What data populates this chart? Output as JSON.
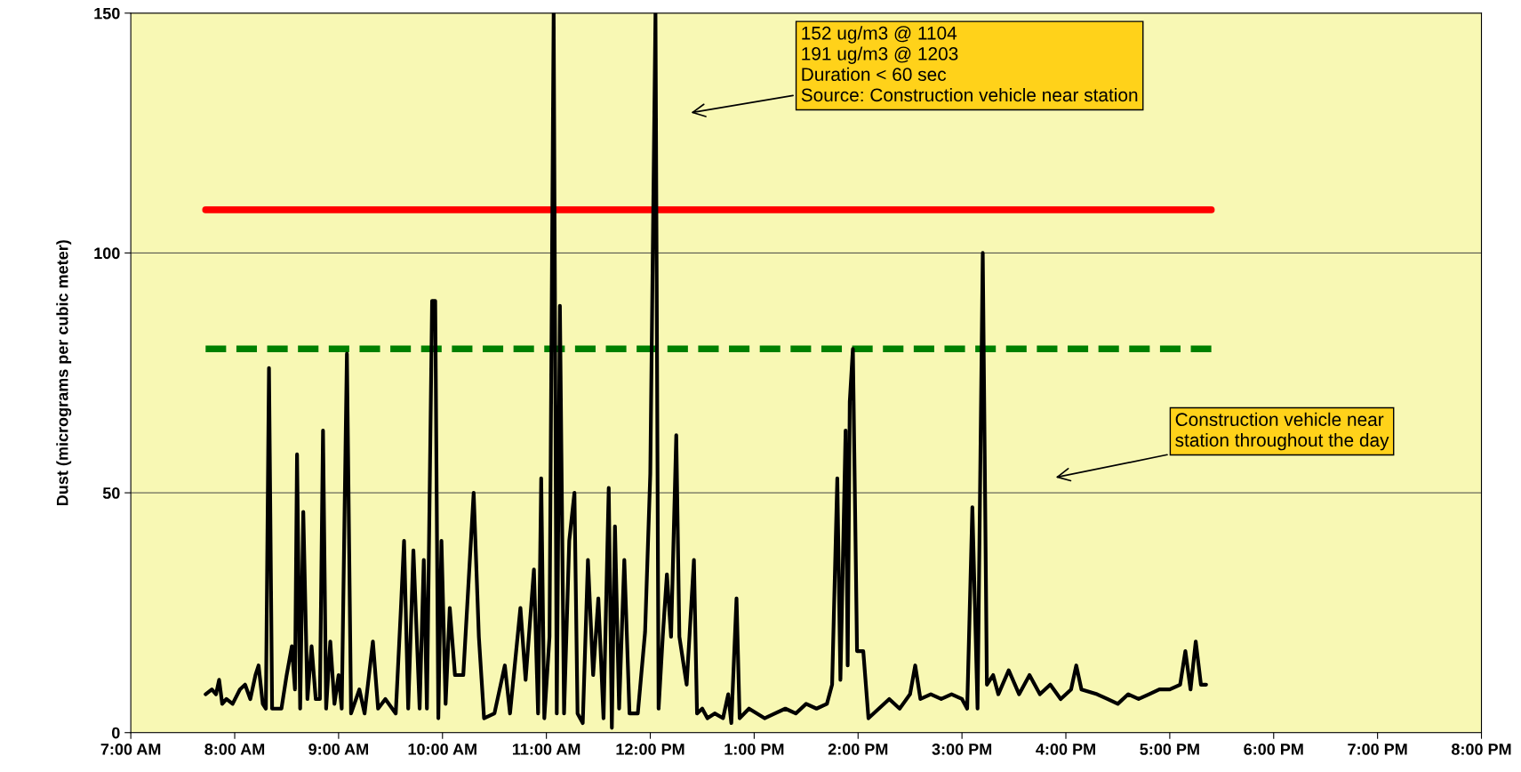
{
  "chart_data": {
    "type": "line",
    "ylabel": "Dust (micrograms per cubic meter)",
    "xlim": [
      7,
      20
    ],
    "ylim": [
      0,
      150
    ],
    "xticks": [
      {
        "value": 7,
        "label": "7:00 AM"
      },
      {
        "value": 8,
        "label": "8:00 AM"
      },
      {
        "value": 9,
        "label": "9:00 AM"
      },
      {
        "value": 10,
        "label": "10:00 AM"
      },
      {
        "value": 11,
        "label": "11:00 AM"
      },
      {
        "value": 12,
        "label": "12:00 PM"
      },
      {
        "value": 13,
        "label": "1:00 PM"
      },
      {
        "value": 14,
        "label": "2:00 PM"
      },
      {
        "value": 15,
        "label": "3:00 PM"
      },
      {
        "value": 16,
        "label": "4:00 PM"
      },
      {
        "value": 17,
        "label": "5:00 PM"
      },
      {
        "value": 18,
        "label": "6:00 PM"
      },
      {
        "value": 19,
        "label": "7:00 PM"
      },
      {
        "value": 20,
        "label": "8:00 PM"
      }
    ],
    "yticks": [
      0,
      50,
      100,
      150
    ],
    "grid": "y",
    "legend": false,
    "marker": "none",
    "annotations": [
      "152 ug/m3 @ 1104\n191 ug/m3 @ 1203\nDuration < 60 sec\nSource: Construction vehicle near station",
      "Construction vehicle near\nstation throughout the day"
    ],
    "series": [
      {
        "color": "#ff0000",
        "line_style": "solid",
        "x": [
          7.72,
          17.4
        ],
        "values": [
          109,
          109
        ]
      },
      {
        "color": "#008000",
        "line_style": "dashed",
        "x": [
          7.72,
          17.4
        ],
        "values": [
          80,
          80
        ]
      },
      {
        "color": "#000000",
        "line_style": "solid",
        "x": [
          7.72,
          7.78,
          7.82,
          7.85,
          7.88,
          7.92,
          7.98,
          8.05,
          8.1,
          8.15,
          8.2,
          8.23,
          8.27,
          8.3,
          8.33,
          8.36,
          8.45,
          8.5,
          8.55,
          8.58,
          8.6,
          8.63,
          8.66,
          8.7,
          8.74,
          8.78,
          8.82,
          8.85,
          8.88,
          8.92,
          8.96,
          9.0,
          9.03,
          9.08,
          9.12,
          9.2,
          9.25,
          9.33,
          9.38,
          9.45,
          9.55,
          9.6,
          9.63,
          9.67,
          9.72,
          9.78,
          9.82,
          9.85,
          9.9,
          9.93,
          9.96,
          9.99,
          10.03,
          10.07,
          10.12,
          10.2,
          10.3,
          10.35,
          10.4,
          10.5,
          10.6,
          10.65,
          10.75,
          10.8,
          10.88,
          10.92,
          10.95,
          10.98,
          11.03,
          11.07,
          11.1,
          11.13,
          11.17,
          11.22,
          11.27,
          11.3,
          11.35,
          11.4,
          11.45,
          11.5,
          11.55,
          11.6,
          11.63,
          11.66,
          11.7,
          11.75,
          11.8,
          11.88,
          11.95,
          12.0,
          12.05,
          12.08,
          12.12,
          12.16,
          12.2,
          12.25,
          12.28,
          12.35,
          12.42,
          12.45,
          12.5,
          12.55,
          12.62,
          12.7,
          12.75,
          12.78,
          12.83,
          12.86,
          12.95,
          13.1,
          13.2,
          13.3,
          13.4,
          13.5,
          13.6,
          13.7,
          13.75,
          13.8,
          13.83,
          13.88,
          13.9,
          13.92,
          13.95,
          13.99,
          14.05,
          14.1,
          14.2,
          14.3,
          14.4,
          14.5,
          14.55,
          14.6,
          14.7,
          14.8,
          14.9,
          15.0,
          15.05,
          15.1,
          15.15,
          15.2,
          15.24,
          15.3,
          15.35,
          15.45,
          15.55,
          15.65,
          15.75,
          15.85,
          15.95,
          16.05,
          16.1,
          16.15,
          16.3,
          16.4,
          16.5,
          16.6,
          16.7,
          16.8,
          16.9,
          17.0,
          17.1,
          17.15,
          17.2,
          17.25,
          17.3,
          17.35
        ],
        "values": [
          8,
          9,
          8,
          11,
          6,
          7,
          6,
          9,
          10,
          7,
          12,
          14,
          6,
          5,
          76,
          5,
          5,
          12,
          18,
          9,
          58,
          5,
          46,
          7,
          18,
          7,
          7,
          63,
          5,
          19,
          6,
          12,
          5,
          79,
          4,
          9,
          4,
          19,
          5,
          7,
          4,
          26,
          40,
          5,
          38,
          5,
          36,
          5,
          90,
          90,
          3,
          40,
          6,
          26,
          12,
          12,
          50,
          20,
          3,
          4,
          14,
          4,
          26,
          11,
          34,
          4,
          53,
          3,
          20,
          150,
          4,
          89,
          4,
          40,
          50,
          4,
          2,
          36,
          12,
          28,
          3,
          51,
          1,
          43,
          5,
          36,
          4,
          4,
          21,
          54,
          150,
          5,
          20,
          33,
          20,
          62,
          20,
          10,
          36,
          4,
          5,
          3,
          4,
          3,
          8,
          2,
          28,
          3,
          5,
          3,
          4,
          5,
          4,
          6,
          5,
          6,
          10,
          53,
          11,
          63,
          14,
          69,
          80,
          17,
          17,
          3,
          5,
          7,
          5,
          8,
          14,
          7,
          8,
          7,
          8,
          7,
          5,
          47,
          5,
          100,
          10,
          12,
          8,
          13,
          8,
          12,
          8,
          10,
          7,
          9,
          14,
          9,
          8,
          7,
          6,
          8,
          7,
          8,
          9,
          9,
          10,
          17,
          9,
          19,
          10,
          10
        ]
      }
    ]
  }
}
